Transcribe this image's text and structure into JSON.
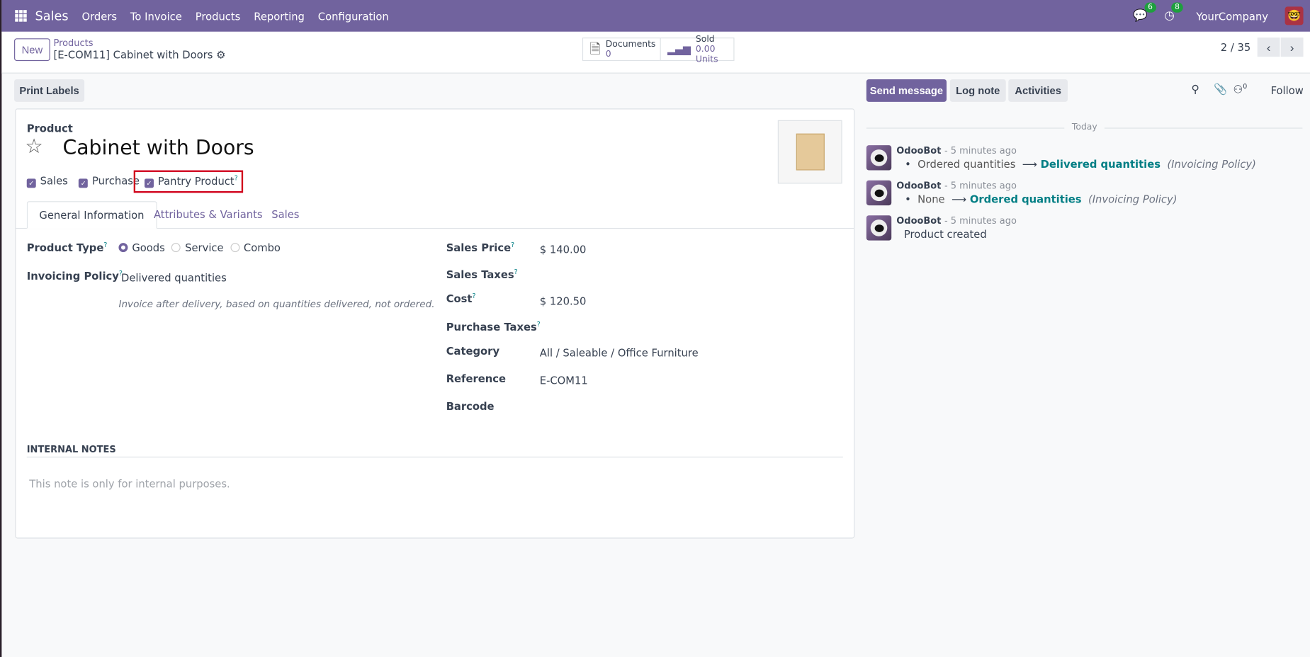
{
  "navbar": {
    "app": "Sales",
    "menu": [
      "Orders",
      "To Invoice",
      "Products",
      "Reporting",
      "Configuration"
    ],
    "messages_count": "6",
    "activities_count": "8",
    "company": "YourCompany"
  },
  "control_panel": {
    "new_label": "New",
    "breadcrumb_parent": "Products",
    "breadcrumb_current": "[E-COM11] Cabinet with Doors",
    "documents_label": "Documents",
    "documents_value": "0",
    "sold_label": "Sold",
    "sold_value": "0.00 Units",
    "pager": "2 / 35"
  },
  "actions": {
    "print_labels": "Print Labels"
  },
  "form": {
    "product_label": "Product",
    "name": "Cabinet with Doors",
    "checkboxes": [
      {
        "label": "Sales",
        "checked": true
      },
      {
        "label": "Purchase",
        "checked": true
      },
      {
        "label": "Pantry Product",
        "checked": true
      }
    ],
    "highlight_color": "#d0021b",
    "tabs": [
      "General Information",
      "Attributes & Variants",
      "Sales"
    ],
    "product_type_label": "Product Type",
    "product_type_options": [
      "Goods",
      "Service",
      "Combo"
    ],
    "product_type_selected": "Goods",
    "invoicing_policy_label": "Invoicing Policy",
    "invoicing_policy_value": "Delivered quantities",
    "invoicing_help": "Invoice after delivery, based on quantities delivered, not ordered.",
    "sales_price_label": "Sales Price",
    "sales_price": "$ 140.00",
    "sales_taxes_label": "Sales Taxes",
    "cost_label": "Cost",
    "cost": "$ 120.50",
    "purchase_taxes_label": "Purchase Taxes",
    "category_label": "Category",
    "category": "All / Saleable / Office Furniture",
    "reference_label": "Reference",
    "reference": "E-COM11",
    "barcode_label": "Barcode",
    "internal_notes_title": "INTERNAL NOTES",
    "internal_notes_placeholder": "This note is only for internal purposes.",
    "help_mark": "?"
  },
  "chatter": {
    "send_message": "Send message",
    "log_note": "Log note",
    "activities": "Activities",
    "followers_count": "0",
    "follow": "Follow",
    "date_separator": "Today",
    "messages": [
      {
        "author": "OdooBot",
        "time": "- 5 minutes ago",
        "old": "Ordered quantities",
        "new": "Delivered quantities",
        "field": "(Invoicing Policy)"
      },
      {
        "author": "OdooBot",
        "time": "- 5 minutes ago",
        "old": "None",
        "new": "Ordered quantities",
        "field": "(Invoicing Policy)"
      },
      {
        "author": "OdooBot",
        "time": "- 5 minutes ago",
        "text": "Product created"
      }
    ]
  },
  "colors": {
    "brand": "#71639e",
    "link": "#017e84",
    "badge": "#1e9f3e"
  }
}
